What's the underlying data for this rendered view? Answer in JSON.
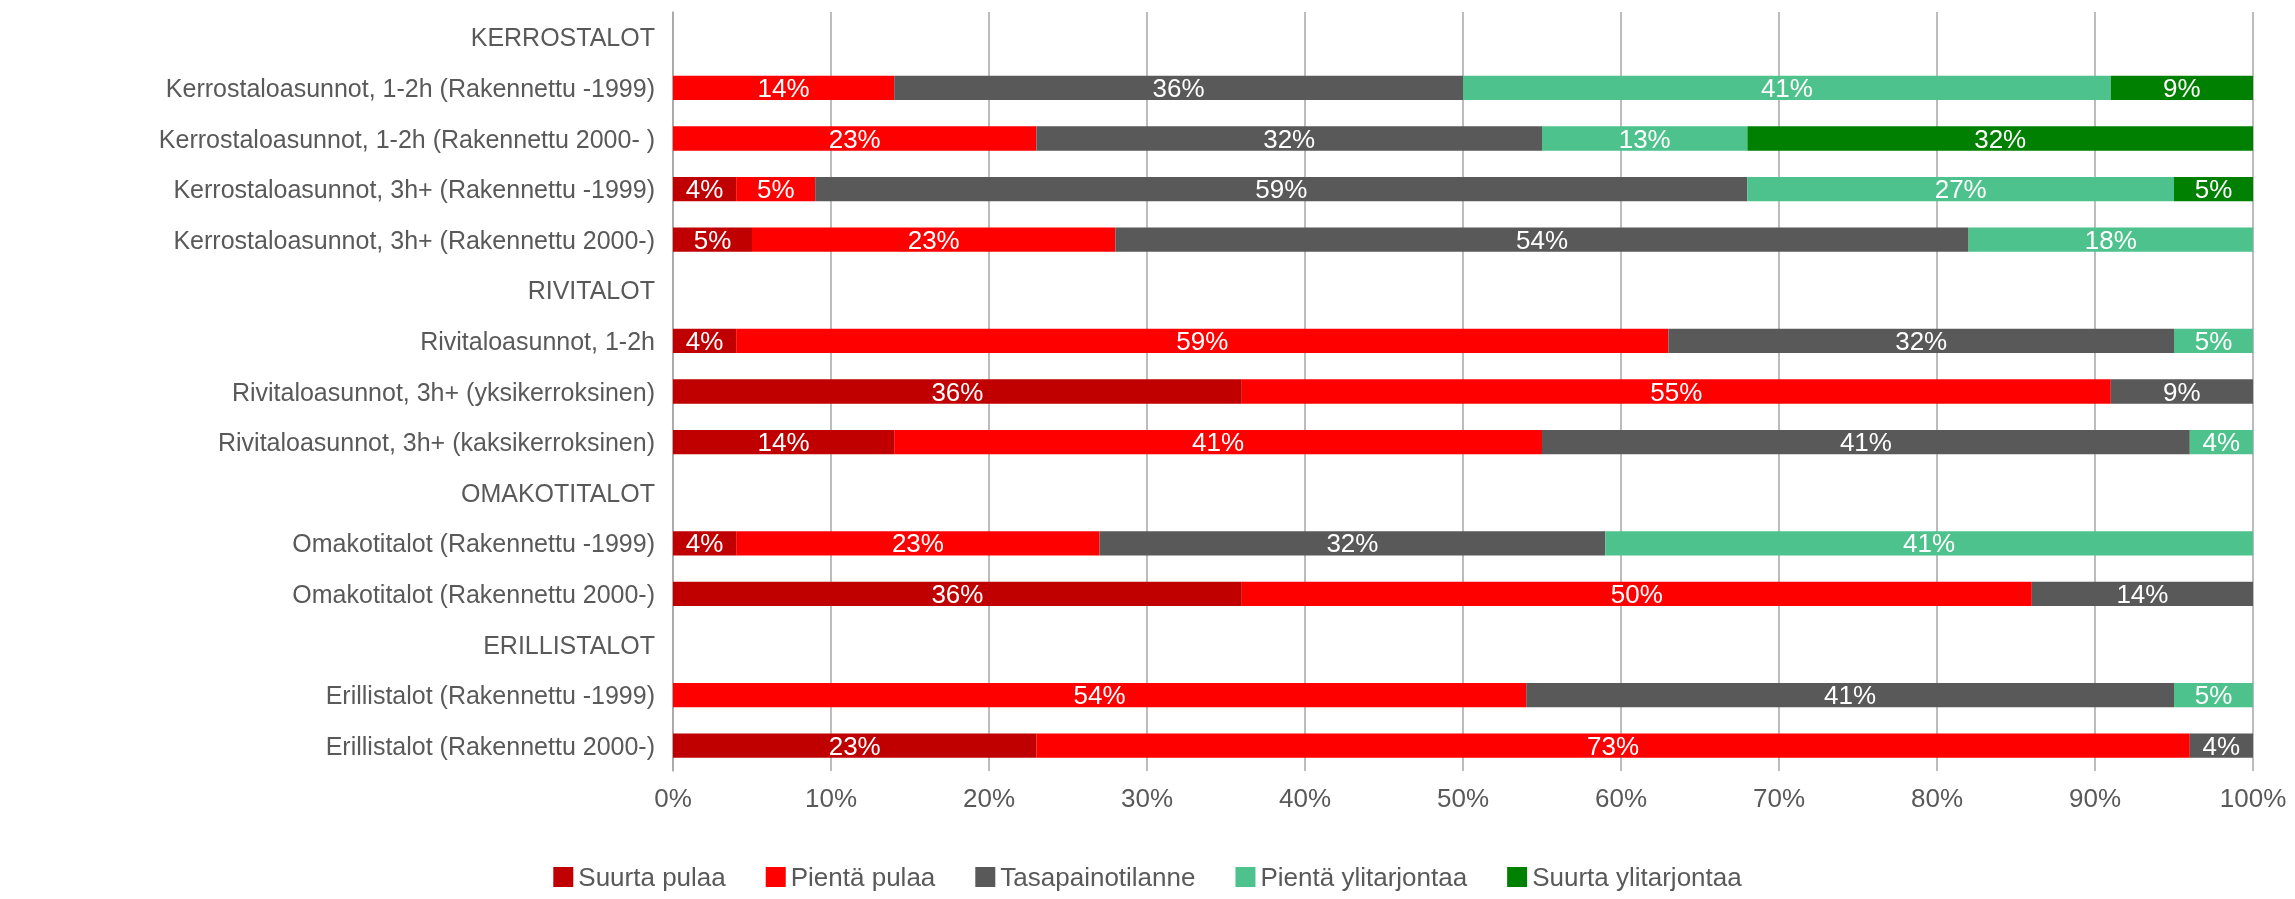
{
  "chart_data": {
    "type": "bar",
    "orientation": "horizontal",
    "stacked": true,
    "categories": [
      "KERROSTALOT",
      "Kerrostaloasunnot, 1-2h (Rakennettu -1999)",
      "Kerrostaloasunnot, 1-2h (Rakennettu 2000- )",
      "Kerrostaloasunnot, 3h+ (Rakennettu -1999)",
      "Kerrostaloasunnot, 3h+ (Rakennettu 2000-)",
      "RIVITALOT",
      "Rivitaloasunnot, 1-2h",
      "Rivitaloasunnot, 3h+ (yksikerroksinen)",
      "Rivitaloasunnot, 3h+ (kaksikerroksinen)",
      "OMAKOTITALOT",
      "Omakotitalot (Rakennettu -1999)",
      "Omakotitalot (Rakennettu 2000-)",
      "ERILLISTALOT",
      "Erillistalot (Rakennettu -1999)",
      "Erillistalot (Rakennettu 2000-)"
    ],
    "series": [
      {
        "name": "Suurta pulaa",
        "color": "#c00000",
        "values": [
          null,
          null,
          null,
          4,
          5,
          null,
          4,
          36,
          14,
          null,
          4,
          36,
          null,
          null,
          23
        ],
        "value_labels": [
          null,
          null,
          null,
          "4%",
          "5%",
          null,
          "4%",
          "36%",
          "14%",
          null,
          "4%",
          "36%",
          null,
          null,
          "23%"
        ]
      },
      {
        "name": "Pientä pulaa",
        "color": "#ff0000",
        "values": [
          null,
          14,
          23,
          5,
          23,
          null,
          59,
          55,
          41,
          null,
          23,
          50,
          null,
          54,
          73
        ],
        "value_labels": [
          null,
          "14%",
          "23%",
          "5%",
          "23%",
          null,
          "59%",
          "55%",
          "41%",
          null,
          "23%",
          "50%",
          null,
          "54%",
          "73%"
        ]
      },
      {
        "name": "Tasapainotilanne",
        "color": "#595959",
        "values": [
          null,
          36,
          32,
          59,
          54,
          null,
          32,
          9,
          41,
          null,
          32,
          14,
          null,
          41,
          4
        ],
        "value_labels": [
          null,
          "36%",
          "32%",
          "59%",
          "54%",
          null,
          "32%",
          "9%",
          "41%",
          null,
          "32%",
          "14%",
          null,
          "41%",
          "4%"
        ]
      },
      {
        "name": "Pientä ylitarjontaa",
        "color": "#4dc28c",
        "values": [
          null,
          41,
          13,
          27,
          18,
          null,
          5,
          null,
          4,
          null,
          41,
          null,
          null,
          5,
          null
        ],
        "value_labels": [
          null,
          "41%",
          "13%",
          "27%",
          "18%",
          null,
          "5%",
          null,
          "4%",
          null,
          "41%",
          null,
          null,
          "5%",
          null
        ]
      },
      {
        "name": "Suurta ylitarjontaa",
        "color": "#008000",
        "values": [
          null,
          9,
          32,
          5,
          null,
          null,
          null,
          null,
          null,
          null,
          null,
          null,
          null,
          null,
          null
        ],
        "value_labels": [
          null,
          "9%",
          "32%",
          "5%",
          null,
          null,
          null,
          null,
          null,
          null,
          null,
          null,
          null,
          null,
          null
        ]
      }
    ],
    "xlim": [
      0,
      100
    ],
    "xticks": [
      {
        "value": 0,
        "label": "0%"
      },
      {
        "value": 10,
        "label": "10%"
      },
      {
        "value": 20,
        "label": "20%"
      },
      {
        "value": 30,
        "label": "30%"
      },
      {
        "value": 40,
        "label": "40%"
      },
      {
        "value": 50,
        "label": "50%"
      },
      {
        "value": 60,
        "label": "60%"
      },
      {
        "value": 70,
        "label": "70%"
      },
      {
        "value": 80,
        "label": "80%"
      },
      {
        "value": 90,
        "label": "90%"
      },
      {
        "value": 100,
        "label": "100%"
      }
    ],
    "grid": "x",
    "legend": "bottom"
  }
}
